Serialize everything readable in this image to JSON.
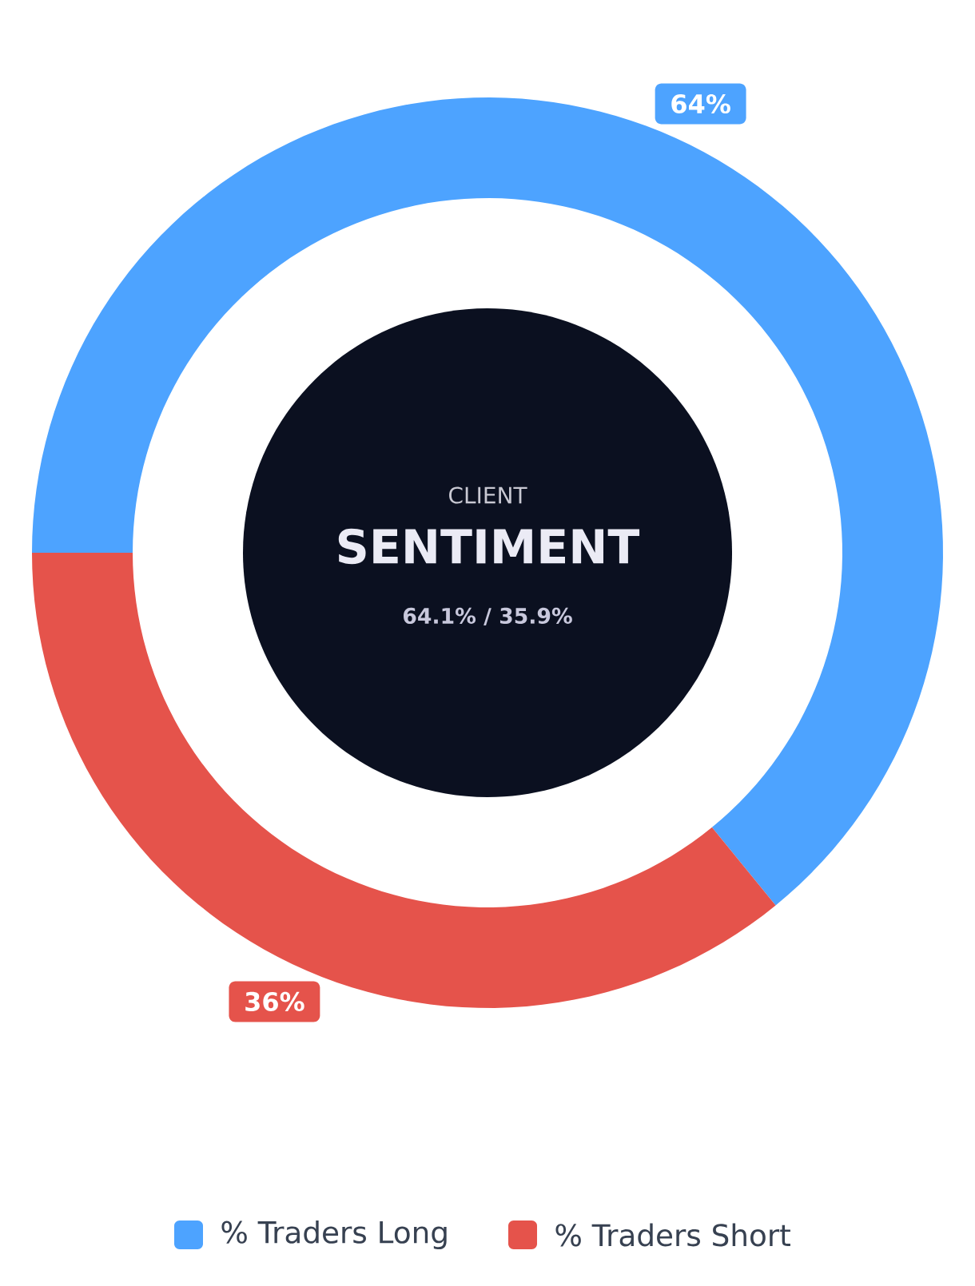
{
  "chart_data": {
    "type": "donut",
    "title": "SENTIMENT",
    "subtitle": "CLIENT",
    "annotations": [
      "64.1% / 35.9%"
    ],
    "categories": [
      "% Traders Long",
      "% Traders Short"
    ],
    "values": [
      64.1,
      35.9
    ],
    "value_labels": [
      "64%",
      "36%"
    ],
    "colors": [
      "#4da3ff",
      "#e5534b"
    ],
    "legend": "bottom"
  }
}
